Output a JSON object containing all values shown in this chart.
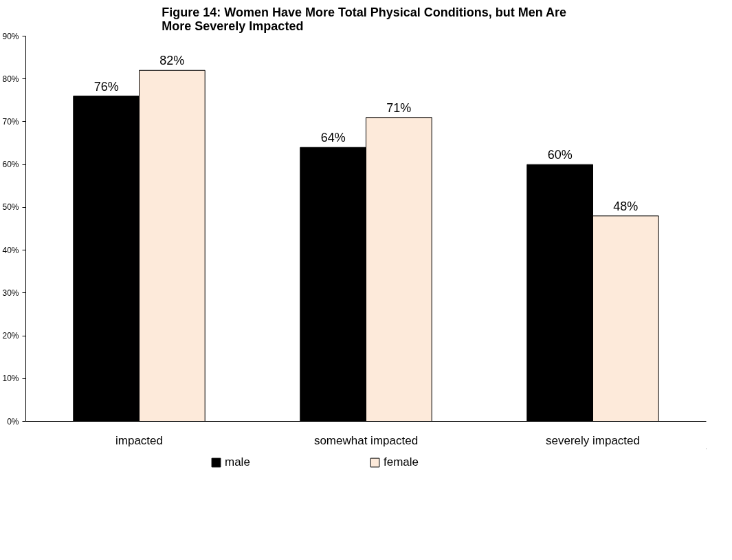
{
  "chart_data": {
    "type": "bar",
    "title": "Figure 14:  Women Have More Total Physical Conditions, but Men Are\nMore Severely Impacted",
    "categories": [
      "impacted",
      "somewhat impacted",
      "severely impacted"
    ],
    "series": [
      {
        "name": "male",
        "color": "#000000",
        "values": [
          76,
          64,
          60
        ],
        "value_labels": [
          "76%",
          "64%",
          "60%"
        ]
      },
      {
        "name": "female",
        "color": "#fdeada",
        "values": [
          82,
          71,
          48
        ],
        "value_labels": [
          "82%",
          "71%",
          "48%"
        ]
      }
    ],
    "ylim": [
      0,
      90
    ],
    "yticks": [
      {
        "value": 0,
        "label": "0%"
      },
      {
        "value": 10,
        "label": "10%"
      },
      {
        "value": 20,
        "label": "20%"
      },
      {
        "value": 30,
        "label": "30%"
      },
      {
        "value": 40,
        "label": "40%"
      },
      {
        "value": 50,
        "label": "50%"
      },
      {
        "value": 60,
        "label": "60%"
      },
      {
        "value": 70,
        "label": "70%"
      },
      {
        "value": 80,
        "label": "80%"
      },
      {
        "value": 90,
        "label": "90%"
      }
    ],
    "grid": false,
    "legend": "bottom"
  }
}
